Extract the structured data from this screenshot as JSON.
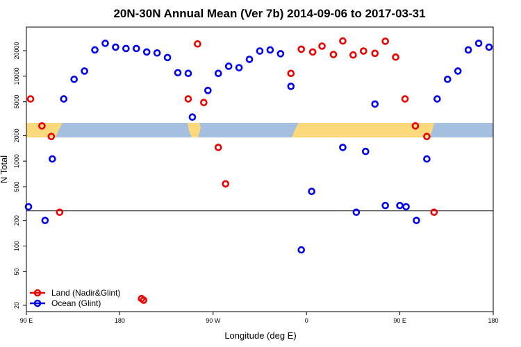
{
  "chart_data": {
    "type": "scatter",
    "title": "20N-30N Annual Mean (Ver 7b)   2014-09-06 to 2017-03-31",
    "xlabel": "Longitude (deg E)",
    "ylabel": "N Total",
    "x_ticks": [
      {
        "value": 90,
        "label": "90 E"
      },
      {
        "value": 180,
        "label": "180"
      },
      {
        "value": 270,
        "label": "90 W"
      },
      {
        "value": 360,
        "label": "0"
      },
      {
        "value": 450,
        "label": "90 E"
      },
      {
        "value": 540,
        "label": "180"
      }
    ],
    "y_ticks": [
      20,
      50,
      100,
      200,
      500,
      1000,
      2000,
      5000,
      10000,
      20000
    ],
    "xlim": [
      90,
      540
    ],
    "y_scale": "log",
    "reference_line": 260,
    "map_band": {
      "lat_range": "20N-30N",
      "colors": {
        "ocean": "#a4bfe0",
        "land": "#fcd97a"
      }
    },
    "series": [
      {
        "name": "Land (Nadir&Glint)",
        "color": "#ee0000",
        "points": [
          {
            "x": 94,
            "y": 5400
          },
          {
            "x": 105,
            "y": 2600
          },
          {
            "x": 114,
            "y": 1950
          },
          {
            "x": 122,
            "y": 250
          },
          {
            "x": 201,
            "y": 24
          },
          {
            "x": 203,
            "y": 23
          },
          {
            "x": 246,
            "y": 5400
          },
          {
            "x": 255,
            "y": 24000
          },
          {
            "x": 261,
            "y": 4900
          },
          {
            "x": 275,
            "y": 1450
          },
          {
            "x": 282,
            "y": 540
          },
          {
            "x": 345,
            "y": 10800
          },
          {
            "x": 355,
            "y": 20800
          },
          {
            "x": 366,
            "y": 19300
          },
          {
            "x": 375,
            "y": 22600
          },
          {
            "x": 386,
            "y": 18000
          },
          {
            "x": 395,
            "y": 26000
          },
          {
            "x": 405,
            "y": 17800
          },
          {
            "x": 415,
            "y": 19800
          },
          {
            "x": 426,
            "y": 18600
          },
          {
            "x": 436,
            "y": 25800
          },
          {
            "x": 446,
            "y": 16800
          },
          {
            "x": 455,
            "y": 5400
          },
          {
            "x": 465,
            "y": 2600
          },
          {
            "x": 476,
            "y": 1950
          },
          {
            "x": 483,
            "y": 250
          }
        ]
      },
      {
        "name": "Ocean (Glint)",
        "color": "#0000ee",
        "points": [
          {
            "x": 92,
            "y": 290
          },
          {
            "x": 108,
            "y": 200
          },
          {
            "x": 115,
            "y": 1060
          },
          {
            "x": 126,
            "y": 5400
          },
          {
            "x": 136,
            "y": 9200
          },
          {
            "x": 146,
            "y": 11500
          },
          {
            "x": 156,
            "y": 20400
          },
          {
            "x": 166,
            "y": 24400
          },
          {
            "x": 176,
            "y": 22000
          },
          {
            "x": 186,
            "y": 21200
          },
          {
            "x": 196,
            "y": 21200
          },
          {
            "x": 206,
            "y": 19300
          },
          {
            "x": 216,
            "y": 18800
          },
          {
            "x": 226,
            "y": 16600
          },
          {
            "x": 236,
            "y": 11000
          },
          {
            "x": 246,
            "y": 10800
          },
          {
            "x": 250,
            "y": 3300
          },
          {
            "x": 265,
            "y": 6800
          },
          {
            "x": 275,
            "y": 10800
          },
          {
            "x": 285,
            "y": 13100
          },
          {
            "x": 295,
            "y": 12600
          },
          {
            "x": 305,
            "y": 15800
          },
          {
            "x": 315,
            "y": 19800
          },
          {
            "x": 325,
            "y": 20400
          },
          {
            "x": 335,
            "y": 18400
          },
          {
            "x": 345,
            "y": 7600
          },
          {
            "x": 355,
            "y": 90
          },
          {
            "x": 365,
            "y": 440
          },
          {
            "x": 395,
            "y": 1450
          },
          {
            "x": 408,
            "y": 250
          },
          {
            "x": 417,
            "y": 1300
          },
          {
            "x": 426,
            "y": 4700
          },
          {
            "x": 436,
            "y": 300
          },
          {
            "x": 450,
            "y": 300
          },
          {
            "x": 456,
            "y": 290
          },
          {
            "x": 466,
            "y": 200
          },
          {
            "x": 476,
            "y": 1060
          },
          {
            "x": 486,
            "y": 5400
          },
          {
            "x": 496,
            "y": 9200
          },
          {
            "x": 506,
            "y": 11500
          },
          {
            "x": 516,
            "y": 20400
          },
          {
            "x": 526,
            "y": 24400
          },
          {
            "x": 536,
            "y": 22000
          }
        ]
      }
    ],
    "legend": {
      "placement": "bottom-left"
    }
  }
}
